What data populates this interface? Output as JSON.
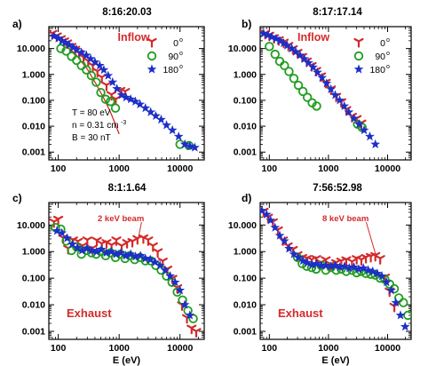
{
  "colors": {
    "series_0": "#d42a2a",
    "series_90": "#1f9e1f",
    "series_180": "#1c2fc8",
    "annotation": "#d42a2a",
    "fit_curve": "#d42a2a",
    "axis": "#000000"
  },
  "chart_data": [
    {
      "type": "scatter",
      "panel_label": "a)",
      "title": "8:16:20.03",
      "xlabel": "",
      "ylabel": "",
      "xscale": "log",
      "yscale": "log",
      "xlim": [
        70,
        25000
      ],
      "ylim": [
        0.0005,
        70
      ],
      "xticks": [
        "100",
        "1000",
        "10000"
      ],
      "yticks": [
        "10.000",
        "1.000",
        "0.100",
        "0.010",
        "0.001"
      ],
      "legend": {
        "placement": "top-right",
        "entries": [
          "0",
          "90",
          "180"
        ],
        "superscript": "o"
      },
      "annotations": [
        {
          "text": "Inflow",
          "color": "#d42a2a",
          "placement": "top-center"
        },
        {
          "text": "T = 80 eV",
          "placement": "middle-left"
        },
        {
          "text": "n = 0.31 cm",
          "superscript": "-3",
          "placement": "middle-left"
        },
        {
          "text": "B = 30 nT",
          "placement": "middle-left"
        }
      ],
      "fit_curve": {
        "x": [
          75,
          120,
          200,
          300,
          420,
          560,
          720,
          880,
          1000
        ],
        "y": [
          42,
          17,
          5.5,
          1.6,
          0.42,
          0.12,
          0.035,
          0.011,
          0.005
        ]
      },
      "series": [
        {
          "name": "0",
          "marker": "tri",
          "color": "#d42a2a",
          "x": [
            80,
            95,
            110,
            125,
            140,
            165,
            190,
            220,
            260,
            310,
            370,
            440,
            520,
            620,
            750,
            880,
            1050,
            1250
          ],
          "y": [
            35,
            28,
            22,
            18,
            15,
            11,
            8.5,
            6,
            4.2,
            3,
            2,
            1.2,
            0.7,
            0.35,
            0.15,
            0.1,
            0.22,
            0.2
          ]
        },
        {
          "name": "90",
          "marker": "circle",
          "color": "#1f9e1f",
          "x": [
            110,
            135,
            165,
            200,
            240,
            290,
            350,
            420,
            500,
            600,
            720,
            870,
            10000,
            14000
          ],
          "y": [
            10,
            8,
            5,
            3.5,
            2.2,
            1.5,
            0.9,
            0.5,
            0.2,
            0.11,
            0.09,
            0.05,
            0.002,
            0.0018
          ]
        },
        {
          "name": "180",
          "marker": "star",
          "color": "#1c2fc8",
          "x": [
            85,
            100,
            115,
            130,
            150,
            175,
            200,
            240,
            290,
            340,
            400,
            480,
            560,
            660,
            780,
            920,
            1100,
            1300,
            1550,
            1850,
            2200,
            2700,
            3300,
            4000,
            4900,
            6000,
            7500,
            9500,
            12000,
            14500,
            17500
          ],
          "y": [
            30,
            25,
            20,
            17,
            14,
            11,
            9,
            7,
            5.5,
            4,
            3,
            2.2,
            1.5,
            0.9,
            0.5,
            0.28,
            0.16,
            0.13,
            0.11,
            0.09,
            0.07,
            0.05,
            0.035,
            0.025,
            0.018,
            0.011,
            0.007,
            0.004,
            0.002,
            0.0017,
            0.0015
          ]
        }
      ]
    },
    {
      "type": "scatter",
      "panel_label": "b)",
      "title": "8:17:17.14",
      "xlabel": "",
      "ylabel": "",
      "xscale": "log",
      "yscale": "log",
      "xlim": [
        70,
        25000
      ],
      "ylim": [
        0.0005,
        70
      ],
      "xticks": [
        "100",
        "1000",
        "10000"
      ],
      "yticks": [
        "10.000",
        "1.000",
        "0.100",
        "0.010",
        "0.001"
      ],
      "legend": {
        "placement": "top-right",
        "entries": [
          "0",
          "90",
          "180"
        ],
        "superscript": "o"
      },
      "annotations": [
        {
          "text": "Inflow",
          "color": "#d42a2a",
          "placement": "top-center"
        }
      ],
      "series": [
        {
          "name": "0",
          "marker": "tri",
          "color": "#d42a2a",
          "x": [
            85,
            100,
            120,
            145,
            175,
            210,
            250,
            300,
            360,
            430,
            520,
            620,
            750,
            900,
            1100,
            1350,
            1650,
            2000,
            2500,
            3000,
            3600
          ],
          "y": [
            35,
            30,
            24,
            20,
            16,
            12,
            9,
            6.5,
            4.5,
            3,
            2,
            1.3,
            0.8,
            0.45,
            0.25,
            0.13,
            0.08,
            0.04,
            0.022,
            0.018,
            0.012
          ]
        },
        {
          "name": "90",
          "marker": "circle",
          "color": "#1f9e1f",
          "x": [
            100,
            125,
            150,
            180,
            215,
            260,
            310,
            370,
            440,
            530,
            630,
            3100,
            3700
          ],
          "y": [
            12,
            6,
            3.2,
            2.2,
            1.3,
            0.7,
            0.38,
            0.22,
            0.13,
            0.08,
            0.06,
            0.012,
            0.009
          ]
        },
        {
          "name": "180",
          "marker": "star",
          "color": "#1c2fc8",
          "x": [
            80,
            95,
            110,
            130,
            150,
            175,
            200,
            240,
            280,
            330,
            390,
            460,
            550,
            650,
            780,
            930,
            1100,
            1300,
            1550,
            1850,
            2200,
            2700,
            3300,
            4000,
            5000,
            6200
          ],
          "y": [
            38,
            33,
            28,
            24,
            20,
            16,
            13,
            10,
            7.5,
            5.5,
            4,
            2.8,
            1.9,
            1.2,
            0.75,
            0.45,
            0.27,
            0.16,
            0.1,
            0.06,
            0.035,
            0.02,
            0.012,
            0.007,
            0.004,
            0.002
          ]
        }
      ]
    },
    {
      "type": "scatter",
      "panel_label": "c)",
      "title": "8:1:1.64",
      "xlabel": "E (eV)",
      "ylabel": "",
      "xscale": "log",
      "yscale": "log",
      "xlim": [
        70,
        25000
      ],
      "ylim": [
        0.0005,
        70
      ],
      "xticks": [
        "100",
        "1000",
        "10000"
      ],
      "yticks": [
        "10.000",
        "1.000",
        "0.100",
        "0.010",
        "0.001"
      ],
      "annotations": [
        {
          "text": "2 keV beam",
          "color": "#d42a2a",
          "placement": "upper-center",
          "arrow_to": [
            2000,
            2.2
          ]
        },
        {
          "text": "Exhaust",
          "color": "#d42a2a",
          "placement": "bottom-left"
        }
      ],
      "series": [
        {
          "name": "0",
          "marker": "tri",
          "color": "#d42a2a",
          "x": [
            85,
            100,
            120,
            145,
            175,
            210,
            250,
            300,
            360,
            430,
            520,
            620,
            750,
            900,
            1100,
            1350,
            1650,
            2000,
            2500,
            3000,
            3600,
            4300,
            5200,
            6200,
            7500,
            9000,
            10800,
            13000,
            15500,
            18500
          ],
          "y": [
            12,
            15,
            3,
            1.2,
            2.5,
            2.2,
            1.5,
            2.5,
            1.2,
            2.4,
            1.8,
            2,
            1.6,
            2.5,
            1.5,
            2,
            2.2,
            2.8,
            3,
            2.5,
            1.5,
            0.9,
            0.4,
            0.2,
            0.09,
            0.04,
            0.009,
            0.003,
            0.0012,
            0.0009
          ]
        },
        {
          "name": "90",
          "marker": "circle",
          "color": "#1f9e1f",
          "x": [
            90,
            110,
            135,
            165,
            200,
            240,
            290,
            350,
            420,
            500,
            600,
            720,
            870,
            1050,
            1250,
            1500,
            1800,
            2200,
            2700,
            3300,
            4000,
            4900,
            6000,
            7400,
            9000,
            11000,
            13500,
            16500
          ],
          "y": [
            8,
            7,
            2.5,
            1.1,
            1.5,
            0.8,
            1.1,
            0.9,
            0.8,
            1,
            0.7,
            0.9,
            0.6,
            0.8,
            0.55,
            0.7,
            0.5,
            0.6,
            0.45,
            0.45,
            0.3,
            0.2,
            0.12,
            0.07,
            0.03,
            0.015,
            0.006,
            0.003
          ]
        },
        {
          "name": "180",
          "marker": "star",
          "color": "#1c2fc8",
          "x": [
            95,
            115,
            140,
            170,
            205,
            245,
            295,
            355,
            425,
            510,
            615,
            740,
            890,
            1070,
            1290,
            1550,
            1860,
            2240,
            2700,
            3250,
            3900,
            4700,
            5700,
            6900,
            8300,
            10000,
            12000,
            14500
          ],
          "y": [
            6,
            5,
            3.2,
            1.9,
            1.4,
            1.1,
            1.3,
            1.1,
            1,
            1.2,
            0.9,
            1,
            0.8,
            0.9,
            0.7,
            0.8,
            0.65,
            0.7,
            0.55,
            0.5,
            0.4,
            0.3,
            0.2,
            0.12,
            0.07,
            0.035,
            0.01,
            0.004
          ]
        }
      ]
    },
    {
      "type": "scatter",
      "panel_label": "d)",
      "title": "7:56:52.98",
      "xlabel": "E (eV)",
      "ylabel": "",
      "xscale": "log",
      "yscale": "log",
      "xlim": [
        70,
        25000
      ],
      "ylim": [
        0.0005,
        70
      ],
      "xticks": [
        "100",
        "1000",
        "10000"
      ],
      "yticks": [
        "10.000",
        "1.000",
        "0.100",
        "0.010",
        "0.001"
      ],
      "annotations": [
        {
          "text": "8 keV beam",
          "color": "#d42a2a",
          "placement": "upper-center",
          "arrow_to": [
            6500,
            0.6
          ]
        },
        {
          "text": "Exhaust",
          "color": "#d42a2a",
          "placement": "bottom-left"
        }
      ],
      "series": [
        {
          "name": "0",
          "marker": "tri",
          "color": "#d42a2a",
          "x": [
            80,
            95,
            115,
            140,
            170,
            205,
            250,
            300,
            360,
            430,
            520,
            620,
            750,
            900,
            1100,
            1350,
            1650,
            2000,
            2500,
            3000,
            3600,
            4300,
            5200,
            6200,
            7500,
            9000,
            10800,
            13000
          ],
          "y": [
            30,
            18,
            12,
            6,
            2.5,
            1.5,
            1.1,
            0.7,
            0.55,
            0.5,
            0.45,
            0.5,
            0.35,
            0.45,
            0.3,
            0.35,
            0.4,
            0.45,
            0.38,
            0.5,
            0.45,
            0.55,
            0.6,
            0.65,
            0.5,
            0.1,
            0.03,
            0.008
          ]
        },
        {
          "name": "90",
          "marker": "circle",
          "color": "#1f9e1f",
          "x": [
            300,
            360,
            430,
            520,
            620,
            750,
            900,
            1100,
            1350,
            1650,
            2000,
            2500,
            3000,
            3600,
            4300,
            5200,
            6200,
            7500,
            9000,
            10800,
            13000,
            15500,
            18500,
            22000
          ],
          "y": [
            0.6,
            0.35,
            0.28,
            0.25,
            0.22,
            0.3,
            0.2,
            0.25,
            0.2,
            0.22,
            0.18,
            0.2,
            0.16,
            0.18,
            0.15,
            0.14,
            0.13,
            0.1,
            0.09,
            0.06,
            0.04,
            0.018,
            0.012,
            0.004
          ]
        },
        {
          "name": "180",
          "marker": "star",
          "color": "#1c2fc8",
          "x": [
            75,
            90,
            105,
            125,
            150,
            180,
            215,
            260,
            310,
            370,
            440,
            530,
            630,
            760,
            910,
            1100,
            1300,
            1560,
            1870,
            2250,
            2700,
            3250,
            3900,
            4700,
            5600,
            6700,
            8000,
            9600,
            11500,
            13800,
            16500,
            19800
          ],
          "y": [
            35,
            25,
            15,
            8,
            4,
            2.5,
            1.3,
            0.8,
            0.6,
            0.45,
            0.38,
            0.32,
            0.35,
            0.3,
            0.3,
            0.28,
            0.3,
            0.26,
            0.28,
            0.24,
            0.26,
            0.22,
            0.24,
            0.2,
            0.18,
            0.15,
            0.12,
            0.07,
            0.035,
            0.012,
            0.004,
            0.0015
          ]
        }
      ]
    }
  ]
}
